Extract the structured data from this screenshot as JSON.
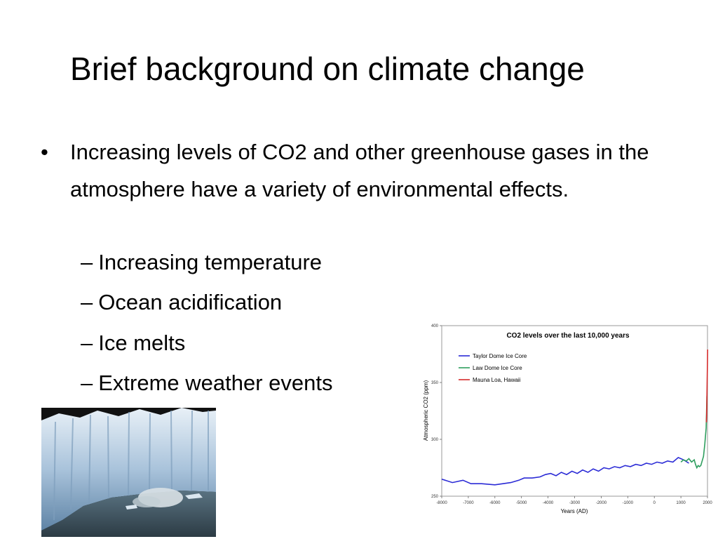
{
  "slide": {
    "title": "Brief background on climate change",
    "bullet": "Increasing levels of CO2 and other greenhouse gases in the atmosphere have a variety of environmental effects.",
    "bullet_symbol": "•",
    "sub_dash": "–",
    "sub_bullets": [
      "Increasing temperature",
      "Ocean acidification",
      "Ice melts",
      "Extreme weather events"
    ]
  },
  "chart_data": {
    "type": "line",
    "title": "CO2 levels over the last 10,000 years",
    "xlabel": "Years (AD)",
    "ylabel": "Atmospheric CO2 (ppm)",
    "xlim": [
      -8000,
      2000
    ],
    "ylim": [
      250,
      400
    ],
    "x_ticks": [
      -8000,
      -7000,
      -6000,
      -5000,
      -4000,
      -3000,
      -2000,
      -1000,
      0,
      1000,
      2000
    ],
    "y_ticks": [
      250,
      300,
      350,
      400
    ],
    "legend_position": "top-left",
    "grid": false,
    "series": [
      {
        "name": "Taylor Dome Ice Core",
        "color": "#2b2bd6",
        "x": [
          -8000,
          -7600,
          -7200,
          -6900,
          -6500,
          -6000,
          -5700,
          -5400,
          -5100,
          -4900,
          -4600,
          -4300,
          -4100,
          -3900,
          -3700,
          -3500,
          -3300,
          -3100,
          -2900,
          -2700,
          -2500,
          -2300,
          -2100,
          -1900,
          -1700,
          -1500,
          -1300,
          -1100,
          -900,
          -700,
          -500,
          -300,
          -100,
          100,
          300,
          500,
          700,
          900,
          1100,
          1300
        ],
        "y": [
          265,
          262,
          264,
          261,
          261,
          260,
          261,
          262,
          264,
          266,
          266,
          267,
          269,
          270,
          268,
          271,
          269,
          272,
          270,
          273,
          271,
          274,
          272,
          275,
          274,
          276,
          275,
          277,
          276,
          278,
          277,
          279,
          278,
          280,
          279,
          281,
          280,
          284,
          282,
          279
        ]
      },
      {
        "name": "Law Dome Ice Core",
        "color": "#2e9e5e",
        "x": [
          1000,
          1100,
          1200,
          1300,
          1400,
          1500,
          1550,
          1600,
          1650,
          1700,
          1750,
          1800,
          1850,
          1900,
          1950,
          1980
        ],
        "y": [
          280,
          282,
          281,
          283,
          280,
          282,
          278,
          275,
          277,
          276,
          277,
          281,
          285,
          296,
          310,
          338
        ]
      },
      {
        "name": "Mauna Loa, Hawaii",
        "color": "#d62b2b",
        "x": [
          1958,
          1965,
          1970,
          1975,
          1980,
          1985,
          1990,
          1995,
          2000,
          2005
        ],
        "y": [
          315,
          320,
          325,
          331,
          338,
          346,
          354,
          361,
          369,
          379
        ]
      }
    ]
  }
}
